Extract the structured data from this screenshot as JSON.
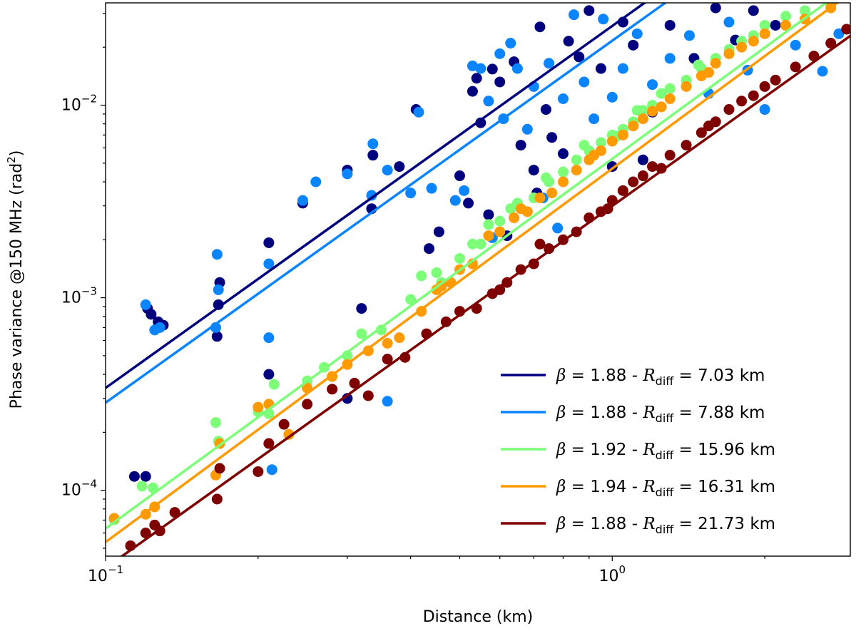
{
  "chart_data": {
    "type": "scatter",
    "title": "",
    "xlabel": "Distance (km)",
    "ylabel_main": "Phase variance @150 MHz (rad",
    "ylabel_sup": "2",
    "ylabel_end": ")",
    "xscale": "log",
    "yscale": "log",
    "xlim": [
      0.1,
      2.95
    ],
    "ylim": [
      4.55e-05,
      0.034
    ],
    "xticks": [
      {
        "value": 0.1,
        "base": "10",
        "exp": "−1"
      },
      {
        "value": 1,
        "base": "10",
        "exp": "0"
      }
    ],
    "yticks": [
      {
        "value": 0.0001,
        "base": "10",
        "exp": "−4"
      },
      {
        "value": 0.001,
        "base": "10",
        "exp": "−3"
      },
      {
        "value": 0.01,
        "base": "10",
        "exp": "−2"
      }
    ],
    "legend_position": "lower-right",
    "series": [
      {
        "name": "β = 1.88 - R_diff = 7.03 km",
        "beta": "1.88",
        "rdiff": "7.03",
        "color": "#00007f",
        "fit": {
          "x0": 0.1,
          "y0": 0.00034,
          "slope": 1.88
        },
        "points": [
          [
            0.121,
            0.00088
          ],
          [
            0.123,
            0.00082
          ],
          [
            0.127,
            0.00075
          ],
          [
            0.13,
            0.00072
          ],
          [
            0.114,
            0.000118
          ],
          [
            0.12,
            0.000118
          ],
          [
            0.167,
            0.00092
          ],
          [
            0.168,
            0.0012
          ],
          [
            0.166,
            0.00063
          ],
          [
            0.21,
            0.00193
          ],
          [
            0.21,
            0.0004
          ],
          [
            0.245,
            0.0031
          ],
          [
            0.3,
            0.0046
          ],
          [
            0.335,
            0.0029
          ],
          [
            0.337,
            0.0055
          ],
          [
            0.38,
            0.0048
          ],
          [
            0.41,
            0.0095
          ],
          [
            0.435,
            0.0018
          ],
          [
            0.455,
            0.0022
          ],
          [
            0.5,
            0.0043
          ],
          [
            0.52,
            0.0031
          ],
          [
            0.53,
            0.0118
          ],
          [
            0.54,
            0.0138
          ],
          [
            0.55,
            0.0081
          ],
          [
            0.57,
            0.0027
          ],
          [
            0.58,
            0.0154
          ],
          [
            0.6,
            0.0132
          ],
          [
            0.62,
            0.0021
          ],
          [
            0.64,
            0.0168
          ],
          [
            0.66,
            0.0062
          ],
          [
            0.7,
            0.0046
          ],
          [
            0.72,
            0.0255
          ],
          [
            0.74,
            0.0095
          ],
          [
            0.76,
            0.0068
          ],
          [
            0.8,
            0.0056
          ],
          [
            0.82,
            0.0215
          ],
          [
            0.86,
            0.0178
          ],
          [
            0.9,
            0.031
          ],
          [
            0.95,
            0.0155
          ],
          [
            1.0,
            0.0048
          ],
          [
            1.05,
            0.027
          ],
          [
            1.1,
            0.0205
          ],
          [
            1.15,
            0.0052
          ],
          [
            1.2,
            0.0092
          ],
          [
            1.3,
            0.026
          ],
          [
            1.45,
            0.0175
          ],
          [
            1.6,
            0.032
          ],
          [
            1.75,
            0.0218
          ],
          [
            1.9,
            0.031
          ],
          [
            2.1,
            0.026
          ],
          [
            0.32,
            0.00088
          ],
          [
            0.3,
            0.0003
          ],
          [
            0.71,
            0.0035
          ]
        ]
      },
      {
        "name": "β = 1.88 - R_diff = 7.88 km",
        "beta": "1.88",
        "rdiff": "7.88",
        "color": "#0a84ff",
        "fit": {
          "x0": 0.1,
          "y0": 0.000285,
          "slope": 1.88
        },
        "points": [
          [
            0.12,
            0.00092
          ],
          [
            0.125,
            0.00068
          ],
          [
            0.128,
            0.0007
          ],
          [
            0.166,
            0.00168
          ],
          [
            0.167,
            0.0011
          ],
          [
            0.165,
            0.0007
          ],
          [
            0.21,
            0.0015
          ],
          [
            0.21,
            0.00062
          ],
          [
            0.213,
            0.000128
          ],
          [
            0.245,
            0.0032
          ],
          [
            0.26,
            0.004
          ],
          [
            0.3,
            0.0044
          ],
          [
            0.335,
            0.0034
          ],
          [
            0.337,
            0.0063
          ],
          [
            0.36,
            0.0046
          ],
          [
            0.4,
            0.0035
          ],
          [
            0.415,
            0.0092
          ],
          [
            0.44,
            0.0037
          ],
          [
            0.49,
            0.0032
          ],
          [
            0.51,
            0.0036
          ],
          [
            0.53,
            0.016
          ],
          [
            0.55,
            0.0155
          ],
          [
            0.57,
            0.0105
          ],
          [
            0.6,
            0.0185
          ],
          [
            0.61,
            0.0085
          ],
          [
            0.63,
            0.021
          ],
          [
            0.65,
            0.0155
          ],
          [
            0.68,
            0.0075
          ],
          [
            0.7,
            0.0125
          ],
          [
            0.73,
            0.0033
          ],
          [
            0.75,
            0.0165
          ],
          [
            0.78,
            0.0023
          ],
          [
            0.8,
            0.0108
          ],
          [
            0.84,
            0.0295
          ],
          [
            0.88,
            0.0132
          ],
          [
            0.92,
            0.0085
          ],
          [
            0.96,
            0.028
          ],
          [
            1.0,
            0.011
          ],
          [
            1.05,
            0.0155
          ],
          [
            1.12,
            0.0235
          ],
          [
            1.2,
            0.0128
          ],
          [
            1.3,
            0.0175
          ],
          [
            1.42,
            0.023
          ],
          [
            1.55,
            0.0115
          ],
          [
            1.7,
            0.027
          ],
          [
            1.85,
            0.0152
          ],
          [
            2.0,
            0.0095
          ],
          [
            2.3,
            0.0205
          ],
          [
            2.6,
            0.015
          ],
          [
            2.8,
            0.0235
          ],
          [
            0.58,
            0.00205
          ],
          [
            0.36,
            0.00029
          ]
        ]
      },
      {
        "name": "β = 1.92 - R_diff = 15.96 km",
        "beta": "1.92",
        "rdiff": "15.96",
        "color": "#7dff7a",
        "fit": {
          "x0": 0.1,
          "y0": 6.33e-05,
          "slope": 1.92
        },
        "points": [
          [
            0.104,
            7.02e-05
          ],
          [
            0.118,
            0.000105
          ],
          [
            0.124,
            0.000103
          ],
          [
            0.165,
            0.000225
          ],
          [
            0.167,
            0.00018
          ],
          [
            0.2,
            0.000255
          ],
          [
            0.21,
            0.00025
          ],
          [
            0.215,
            0.000355
          ],
          [
            0.25,
            0.00037
          ],
          [
            0.27,
            0.000435
          ],
          [
            0.3,
            0.0005
          ],
          [
            0.32,
            0.00065
          ],
          [
            0.35,
            0.00068
          ],
          [
            0.4,
            0.00098
          ],
          [
            0.42,
            0.0013
          ],
          [
            0.45,
            0.00135
          ],
          [
            0.5,
            0.0016
          ],
          [
            0.53,
            0.0019
          ],
          [
            0.57,
            0.0024
          ],
          [
            0.6,
            0.0025
          ],
          [
            0.65,
            0.0031
          ],
          [
            0.7,
            0.0033
          ],
          [
            0.75,
            0.004
          ],
          [
            0.8,
            0.0045
          ],
          [
            0.85,
            0.0052
          ],
          [
            0.9,
            0.0058
          ],
          [
            0.95,
            0.0064
          ],
          [
            1.0,
            0.007
          ],
          [
            1.05,
            0.0075
          ],
          [
            1.1,
            0.0082
          ],
          [
            1.15,
            0.0094
          ],
          [
            1.2,
            0.01
          ],
          [
            1.25,
            0.0115
          ],
          [
            1.3,
            0.0122
          ],
          [
            1.4,
            0.0135
          ],
          [
            1.5,
            0.0155
          ],
          [
            1.6,
            0.0175
          ],
          [
            1.7,
            0.0195
          ],
          [
            1.8,
            0.0215
          ],
          [
            1.9,
            0.023
          ],
          [
            2.0,
            0.026
          ],
          [
            2.2,
            0.029
          ],
          [
            2.4,
            0.031
          ],
          [
            2.7,
            0.033
          ],
          [
            0.88,
            0.0062
          ],
          [
            1.12,
            0.0094
          ],
          [
            1.48,
            0.0162
          ],
          [
            1.02,
            0.0069
          ],
          [
            0.63,
            0.0029
          ],
          [
            0.74,
            0.0042
          ],
          [
            0.55,
            0.0019
          ],
          [
            0.46,
            0.0012
          ]
        ]
      },
      {
        "name": "β = 1.94 - R_diff = 16.31 km",
        "beta": "1.94",
        "rdiff": "16.31",
        "color": "#ff9a00",
        "fit": {
          "x0": 0.1,
          "y0": 5.38e-05,
          "slope": 1.94
        },
        "points": [
          [
            0.104,
            7.15e-05
          ],
          [
            0.12,
            7.5e-05
          ],
          [
            0.125,
            8.2e-05
          ],
          [
            0.165,
            0.00012
          ],
          [
            0.168,
            0.000175
          ],
          [
            0.2,
            0.00027
          ],
          [
            0.21,
            0.00028
          ],
          [
            0.23,
            0.000195
          ],
          [
            0.25,
            0.00034
          ],
          [
            0.28,
            0.00039
          ],
          [
            0.3,
            0.00045
          ],
          [
            0.33,
            0.00053
          ],
          [
            0.36,
            0.00058
          ],
          [
            0.38,
            0.00062
          ],
          [
            0.42,
            0.00085
          ],
          [
            0.45,
            0.0011
          ],
          [
            0.48,
            0.0012
          ],
          [
            0.5,
            0.0014
          ],
          [
            0.53,
            0.0015
          ],
          [
            0.57,
            0.0021
          ],
          [
            0.6,
            0.0022
          ],
          [
            0.64,
            0.0026
          ],
          [
            0.68,
            0.0028
          ],
          [
            0.72,
            0.0033
          ],
          [
            0.76,
            0.0035
          ],
          [
            0.8,
            0.004
          ],
          [
            0.85,
            0.0046
          ],
          [
            0.9,
            0.0052
          ],
          [
            0.95,
            0.0058
          ],
          [
            1.0,
            0.0065
          ],
          [
            1.05,
            0.007
          ],
          [
            1.1,
            0.0078
          ],
          [
            1.15,
            0.0085
          ],
          [
            1.2,
            0.0093
          ],
          [
            1.3,
            0.0108
          ],
          [
            1.4,
            0.0125
          ],
          [
            1.5,
            0.0142
          ],
          [
            1.6,
            0.0165
          ],
          [
            1.7,
            0.0185
          ],
          [
            1.8,
            0.02
          ],
          [
            1.9,
            0.0215
          ],
          [
            2.0,
            0.0235
          ],
          [
            2.2,
            0.026
          ],
          [
            2.4,
            0.028
          ],
          [
            2.7,
            0.032
          ],
          [
            0.92,
            0.0055
          ],
          [
            1.25,
            0.0098
          ],
          [
            1.55,
            0.0148
          ],
          [
            0.66,
            0.0029
          ],
          [
            0.46,
            0.00115
          ]
        ]
      },
      {
        "name": "β = 1.88 - R_diff = 21.73 km",
        "beta": "1.88",
        "rdiff": "21.73",
        "color": "#7f0000",
        "fit": {
          "x0": 0.1,
          "y0": 3.95e-05,
          "slope": 1.88
        },
        "points": [
          [
            0.112,
            5.15e-05
          ],
          [
            0.12,
            6e-05
          ],
          [
            0.125,
            6.6e-05
          ],
          [
            0.128,
            6.15e-05
          ],
          [
            0.137,
            7.68e-05
          ],
          [
            0.166,
            9e-05
          ],
          [
            0.168,
            0.00013
          ],
          [
            0.2,
            0.000125
          ],
          [
            0.21,
            0.000175
          ],
          [
            0.225,
            0.00022
          ],
          [
            0.25,
            0.00028
          ],
          [
            0.28,
            0.000335
          ],
          [
            0.31,
            0.00036
          ],
          [
            0.33,
            0.00031
          ],
          [
            0.36,
            0.00048
          ],
          [
            0.39,
            0.00049
          ],
          [
            0.43,
            0.00065
          ],
          [
            0.47,
            0.00075
          ],
          [
            0.5,
            0.00085
          ],
          [
            0.54,
            0.00088
          ],
          [
            0.58,
            0.00105
          ],
          [
            0.62,
            0.0012
          ],
          [
            0.66,
            0.0014
          ],
          [
            0.7,
            0.0015
          ],
          [
            0.75,
            0.0018
          ],
          [
            0.8,
            0.002
          ],
          [
            0.85,
            0.0022
          ],
          [
            0.9,
            0.0026
          ],
          [
            0.95,
            0.0028
          ],
          [
            1.0,
            0.0032
          ],
          [
            1.05,
            0.0036
          ],
          [
            1.1,
            0.004
          ],
          [
            1.15,
            0.0043
          ],
          [
            1.2,
            0.0048
          ],
          [
            1.3,
            0.0055
          ],
          [
            1.4,
            0.0062
          ],
          [
            1.5,
            0.0072
          ],
          [
            1.6,
            0.0082
          ],
          [
            1.7,
            0.0095
          ],
          [
            1.8,
            0.0105
          ],
          [
            1.9,
            0.0112
          ],
          [
            2.0,
            0.0125
          ],
          [
            2.1,
            0.0135
          ],
          [
            2.3,
            0.0158
          ],
          [
            2.5,
            0.018
          ],
          [
            2.7,
            0.021
          ],
          [
            2.9,
            0.0248
          ],
          [
            0.72,
            0.0019
          ],
          [
            0.98,
            0.0029
          ],
          [
            1.25,
            0.0047
          ],
          [
            1.55,
            0.0078
          ],
          [
            0.6,
            0.0011
          ]
        ]
      }
    ]
  }
}
